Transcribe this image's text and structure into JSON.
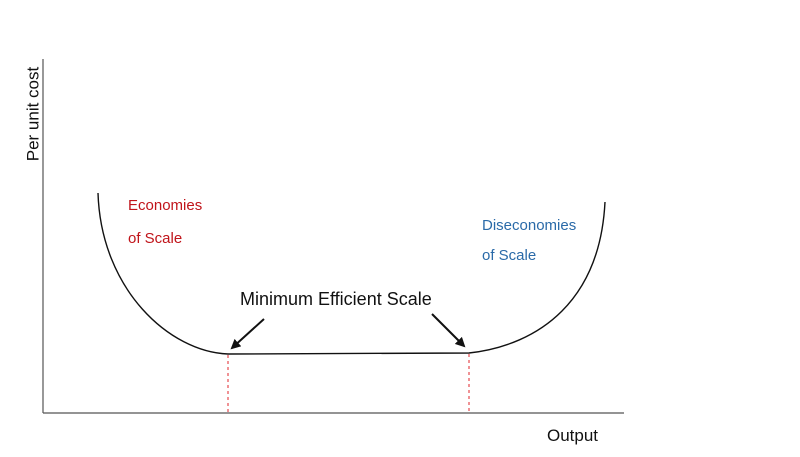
{
  "axes": {
    "y_label": "Per unit cost",
    "x_label": "Output"
  },
  "regions": {
    "economies": {
      "line1": "Economies",
      "line2": "of Scale"
    },
    "diseconomies": {
      "line1": "Diseconomies",
      "line2": "of Scale"
    }
  },
  "annotation": {
    "label": "Minimum Efficient Scale"
  },
  "colors": {
    "curve": "#111111",
    "axes": "#555555",
    "economies_text": "#c0141a",
    "diseconomies_text": "#2a6aa8",
    "guide_lines": "#e0262b"
  }
}
